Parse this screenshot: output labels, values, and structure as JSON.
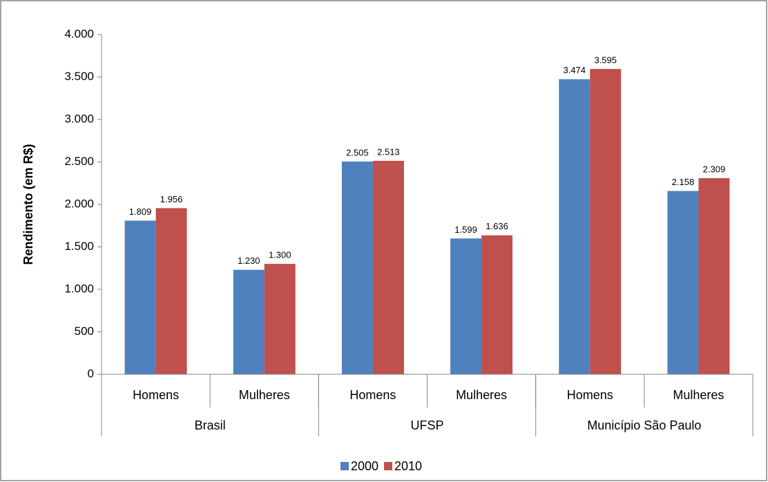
{
  "chart_data": {
    "type": "bar",
    "y_label": "Rendimento (em R$)",
    "categories": [
      "Homens",
      "Mulheres",
      "Homens",
      "Mulheres",
      "Homens",
      "Mulheres"
    ],
    "groups": [
      "Brasil",
      "UFSP",
      "Município São Paulo"
    ],
    "series": [
      {
        "name": "2000",
        "color": "#4f81bd",
        "values": [
          1809,
          1230,
          2505,
          1599,
          3474,
          2158
        ],
        "value_labels": [
          "1.809",
          "1.230",
          "2.505",
          "1.599",
          "3.474",
          "2.158"
        ]
      },
      {
        "name": "2010",
        "color": "#c0504d",
        "values": [
          1956,
          1300,
          2513,
          1636,
          3595,
          2309
        ],
        "value_labels": [
          "1.956",
          "1.300",
          "2.513",
          "1.636",
          "3.595",
          "2.309"
        ]
      }
    ],
    "ylim": [
      0,
      4000
    ],
    "yticks": [
      0,
      500,
      {
        "value": 1000,
        "label": "1.000"
      },
      {
        "value": 1500,
        "label": "1.500"
      },
      {
        "value": 2000,
        "label": "2.000"
      },
      {
        "value": 2500,
        "label": "2.500"
      },
      {
        "value": 3000,
        "label": "3.000"
      },
      {
        "value": 3500,
        "label": "3.500"
      },
      {
        "value": 4000,
        "label": "4.000"
      }
    ],
    "grid": false,
    "legend": "bottom"
  }
}
